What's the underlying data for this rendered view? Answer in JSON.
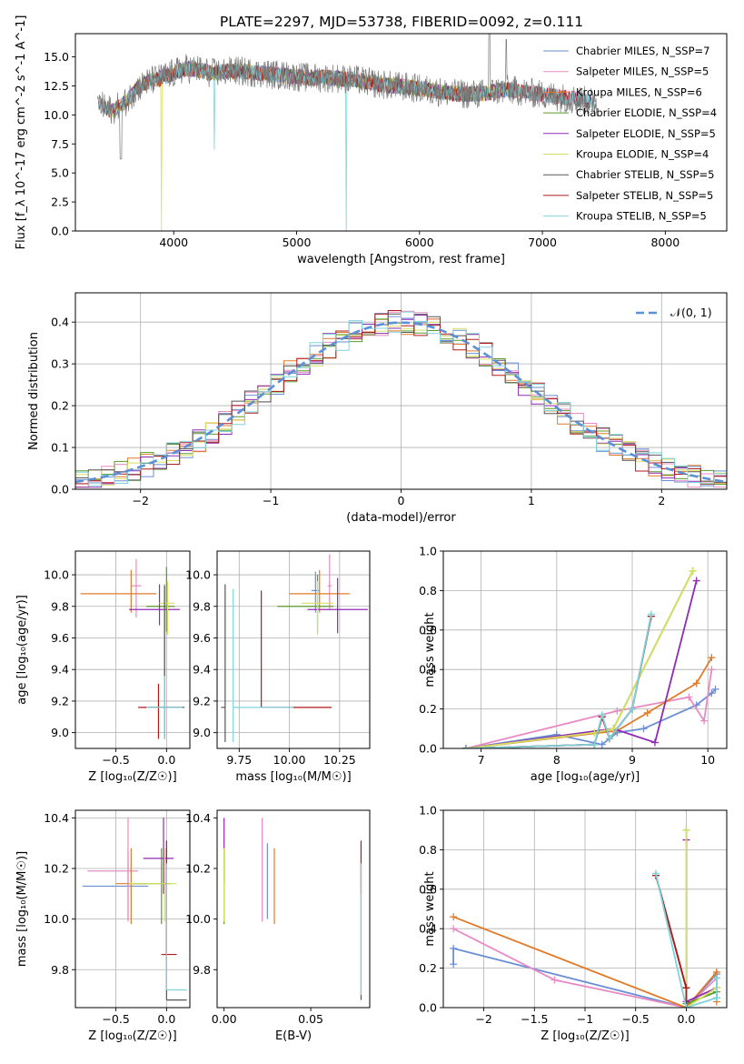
{
  "figure": {
    "title": "PLATE=2297, MJD=53738, FIBERID=0092, z=0.111",
    "fit_colors": [
      "#6a8fd6",
      "#e88bc4",
      "#e07b2a",
      "#5b9a2a",
      "#8f2ab5",
      "#d6e060",
      "#555555",
      "#b01a1a",
      "#7fd4dc"
    ]
  },
  "chart_data": [
    {
      "id": "spectrum",
      "type": "line",
      "title": "PLATE=2297, MJD=53738, FIBERID=0092, z=0.111",
      "xlabel": "wavelength [Angstrom, rest frame]",
      "ylabel": "Flux [f_λ 10^-17 erg cm^-2 s^-1 A^-1]",
      "xlim": [
        3200,
        8500
      ],
      "ylim": [
        0,
        17
      ],
      "xticks": [
        4000,
        5000,
        6000,
        7000,
        8000
      ],
      "yticks": [
        0.0,
        2.5,
        5.0,
        7.5,
        10.0,
        12.5,
        15.0
      ],
      "grid": false,
      "legend_position": "top-right",
      "series": [
        {
          "name": "Chabrier MILES, N_SSP=7",
          "color": "#6a8fd6"
        },
        {
          "name": "Salpeter MILES, N_SSP=5",
          "color": "#e88bc4"
        },
        {
          "name": "Kroupa MILES, N_SSP=6",
          "color": "#e07b2a"
        },
        {
          "name": "Chabrier ELODIE, N_SSP=4",
          "color": "#5b9a2a"
        },
        {
          "name": "Salpeter ELODIE, N_SSP=5",
          "color": "#8f2ab5"
        },
        {
          "name": "Kroupa ELODIE, N_SSP=4",
          "color": "#d6e060"
        },
        {
          "name": "Chabrier STELIB, N_SSP=5",
          "color": "#555555"
        },
        {
          "name": "Salpeter STELIB, N_SSP=5",
          "color": "#b01a1a"
        },
        {
          "name": "Kroupa STELIB, N_SSP=5",
          "color": "#7fd4dc"
        }
      ],
      "data_continuum": {
        "x": [
          3400,
          3500,
          3600,
          3700,
          3800,
          3900,
          4000,
          4100,
          4200,
          4300,
          4500,
          4700,
          4900,
          5100,
          5300,
          5500,
          5700,
          5900,
          6100,
          6300,
          6500,
          6700,
          6900,
          7100,
          7300,
          7400
        ],
        "y": [
          10.8,
          10.4,
          11.0,
          12.3,
          12.9,
          13.2,
          13.6,
          14.0,
          13.9,
          13.6,
          13.8,
          13.6,
          13.4,
          13.2,
          13.2,
          13.0,
          12.6,
          12.4,
          12.1,
          11.8,
          11.8,
          12.2,
          11.9,
          11.6,
          11.3,
          11.1
        ]
      }
    },
    {
      "id": "residuals",
      "type": "step",
      "xlabel": "(data-model)/error",
      "ylabel": "Normed distribution",
      "xlim": [
        -2.5,
        2.5
      ],
      "ylim": [
        0,
        0.47
      ],
      "xticks": [
        -2,
        -1,
        0,
        1,
        2
      ],
      "yticks": [
        0.0,
        0.1,
        0.2,
        0.3,
        0.4
      ],
      "grid": true,
      "legend_position": "top-right",
      "reference_curve": {
        "name": "𝒩(0, 1)",
        "color": "#5b8fd6",
        "mean": 0,
        "sigma": 1
      }
    },
    {
      "id": "age-vs-z",
      "type": "errorbar",
      "xlabel": "Z [log₁₀(Z/Z☉)]",
      "ylabel": "age  [log₁₀(age/yr)]",
      "xlim": [
        -0.9,
        0.23
      ],
      "ylim": [
        8.9,
        10.15
      ],
      "xticks": [
        -0.5,
        0.0
      ],
      "yticks": [
        9.0,
        9.2,
        9.4,
        9.6,
        9.8,
        10.0
      ],
      "grid": true,
      "points": [
        {
          "fit": 0,
          "x": -0.02,
          "y": 9.16,
          "xerr": [
            0.2,
            0.2
          ],
          "yerr": [
            0.2,
            0.78
          ]
        },
        {
          "fit": 1,
          "x": -0.3,
          "y": 9.93,
          "xerr": [
            0.05,
            0.05
          ],
          "yerr": [
            0.2,
            0.17
          ]
        },
        {
          "fit": 2,
          "x": -0.35,
          "y": 9.88,
          "xerr": [
            0.5,
            0.25
          ],
          "yerr": [
            0.12,
            0.15
          ]
        },
        {
          "fit": 3,
          "x": 0.0,
          "y": 9.8,
          "xerr": [
            0.2,
            0.08
          ],
          "yerr": [
            0.16,
            0.25
          ]
        },
        {
          "fit": 4,
          "x": -0.07,
          "y": 9.78,
          "xerr": [
            0.3,
            0.2
          ],
          "yerr": [
            0.1,
            0.16
          ]
        },
        {
          "fit": 5,
          "x": 0.01,
          "y": 9.82,
          "xerr": [
            0.08,
            0.07
          ],
          "yerr": [
            0.2,
            0.14
          ]
        },
        {
          "fit": 6,
          "x": -0.02,
          "y": 9.16,
          "xerr": [
            0.15,
            0.15
          ],
          "yerr": [
            0.2,
            0.77
          ]
        },
        {
          "fit": 7,
          "x": -0.08,
          "y": 9.16,
          "xerr": [
            0.2,
            0.25
          ],
          "yerr": [
            0.2,
            0.15
          ]
        },
        {
          "fit": 8,
          "x": -0.02,
          "y": 9.16,
          "xerr": [
            0.18,
            0.18
          ],
          "yerr": [
            0.2,
            0.2
          ]
        }
      ]
    },
    {
      "id": "age-vs-mass",
      "type": "errorbar",
      "xlabel": "mass [log₁₀(M/M☉)]",
      "ylabel": "",
      "xlim": [
        9.64,
        10.4
      ],
      "ylim": [
        8.9,
        10.15
      ],
      "xticks": [
        9.75,
        10.0,
        10.25
      ],
      "yticks": [
        9.0,
        9.2,
        9.4,
        9.6,
        9.8,
        10.0
      ],
      "grid": true,
      "points": [
        {
          "fit": 0,
          "x": 10.13,
          "y": 9.9,
          "xerr": [
            0.02,
            0.02
          ],
          "yerr": [
            0.14,
            0.12
          ]
        },
        {
          "fit": 1,
          "x": 10.2,
          "y": 9.93,
          "xerr": [
            0.01,
            0.01
          ],
          "yerr": [
            0.15,
            0.2
          ]
        },
        {
          "fit": 2,
          "x": 10.15,
          "y": 9.88,
          "xerr": [
            0.15,
            0.15
          ],
          "yerr": [
            0.12,
            0.15
          ]
        },
        {
          "fit": 3,
          "x": 10.14,
          "y": 9.8,
          "xerr": [
            0.2,
            0.08
          ],
          "yerr": [
            0.16,
            0.2
          ]
        },
        {
          "fit": 4,
          "x": 10.24,
          "y": 9.78,
          "xerr": [
            0.15,
            0.15
          ],
          "yerr": [
            0.15,
            0.2
          ]
        },
        {
          "fit": 5,
          "x": 10.14,
          "y": 9.82,
          "xerr": [
            0.08,
            0.08
          ],
          "yerr": [
            0.2,
            0.14
          ]
        },
        {
          "fit": 6,
          "x": 9.68,
          "y": 9.16,
          "xerr": [
            0.02,
            0.0
          ],
          "yerr": [
            0.22,
            0.78
          ]
        },
        {
          "fit": 7,
          "x": 9.86,
          "y": 9.16,
          "xerr": [
            0.0,
            0.35
          ],
          "yerr": [
            0.0,
            0.74
          ]
        },
        {
          "fit": 8,
          "x": 9.72,
          "y": 9.16,
          "xerr": [
            0.0,
            0.3
          ],
          "yerr": [
            0.22,
            0.75
          ]
        }
      ]
    },
    {
      "id": "massweight-vs-age",
      "type": "line",
      "xlabel": "age  [log₁₀(age/yr)]",
      "ylabel": "mass weight",
      "xlim": [
        6.5,
        10.25
      ],
      "ylim": [
        0,
        1
      ],
      "xticks": [
        7,
        8,
        9,
        10
      ],
      "yticks": [
        0.0,
        0.2,
        0.4,
        0.6,
        0.8,
        1.0
      ],
      "grid": true,
      "series": [
        {
          "fit": 0,
          "x": [
            6.8,
            8.0,
            8.6,
            8.8,
            9.15,
            9.85,
            10.05,
            10.1
          ],
          "y": [
            0.0,
            0.07,
            0.02,
            0.08,
            0.1,
            0.22,
            0.28,
            0.3
          ]
        },
        {
          "fit": 1,
          "x": [
            6.8,
            8.8,
            9.75,
            9.95,
            10.05
          ],
          "y": [
            0.0,
            0.19,
            0.26,
            0.14,
            0.4
          ]
        },
        {
          "fit": 2,
          "x": [
            6.8,
            8.8,
            9.2,
            9.85,
            10.05
          ],
          "y": [
            0.0,
            0.09,
            0.18,
            0.33,
            0.46
          ]
        },
        {
          "fit": 3,
          "x": [
            6.8,
            8.5,
            8.75,
            9.8
          ],
          "y": [
            0.0,
            0.08,
            0.1,
            0.9
          ]
        },
        {
          "fit": 4,
          "x": [
            6.8,
            8.75,
            9.3,
            9.85
          ],
          "y": [
            0.0,
            0.1,
            0.03,
            0.85
          ]
        },
        {
          "fit": 5,
          "x": [
            6.8,
            8.5,
            8.75,
            9.8
          ],
          "y": [
            0.0,
            0.08,
            0.1,
            0.9
          ]
        },
        {
          "fit": 6,
          "x": [
            6.8,
            8.5,
            8.6,
            8.7,
            9.0,
            9.25
          ],
          "y": [
            0.0,
            0.02,
            0.16,
            0.05,
            0.2,
            0.67
          ]
        },
        {
          "fit": 7,
          "x": [
            6.8,
            8.5,
            8.6,
            8.7,
            9.0,
            9.25
          ],
          "y": [
            0.0,
            0.02,
            0.16,
            0.05,
            0.2,
            0.67
          ]
        },
        {
          "fit": 8,
          "x": [
            6.8,
            8.5,
            8.6,
            8.7,
            9.0,
            9.25
          ],
          "y": [
            0.0,
            0.02,
            0.17,
            0.05,
            0.2,
            0.68
          ]
        }
      ]
    },
    {
      "id": "mass-vs-z",
      "type": "errorbar",
      "xlabel": "Z [log₁₀(Z/Z☉)]",
      "ylabel": "mass [log₁₀(M/M☉)]",
      "xlim": [
        -0.9,
        0.23
      ],
      "ylim": [
        9.65,
        10.43
      ],
      "xticks": [
        -0.5,
        0.0
      ],
      "yticks": [
        9.8,
        10.0,
        10.2,
        10.4
      ],
      "grid": true,
      "points": [
        {
          "fit": 0,
          "x": -0.38,
          "y": 10.13,
          "xerr": [
            0.45,
            0.2
          ],
          "yerr": [
            0.13,
            0.14
          ]
        },
        {
          "fit": 1,
          "x": -0.38,
          "y": 10.19,
          "xerr": [
            0.4,
            0.1
          ],
          "yerr": [
            0.2,
            0.21
          ]
        },
        {
          "fit": 2,
          "x": -0.35,
          "y": 10.14,
          "xerr": [
            0.15,
            0.15
          ],
          "yerr": [
            0.16,
            0.14
          ]
        },
        {
          "fit": 3,
          "x": -0.05,
          "y": 10.14,
          "xerr": [
            0.3,
            0.1
          ],
          "yerr": [
            0.16,
            0.14
          ]
        },
        {
          "fit": 4,
          "x": -0.03,
          "y": 10.24,
          "xerr": [
            0.2,
            0.1
          ],
          "yerr": [
            0.14,
            0.16
          ]
        },
        {
          "fit": 5,
          "x": -0.02,
          "y": 10.14,
          "xerr": [
            0.35,
            0.12
          ],
          "yerr": [
            0.15,
            0.14
          ]
        },
        {
          "fit": 6,
          "x": 0.0,
          "y": 9.68,
          "xerr": [
            0.0,
            0.2
          ],
          "yerr": [
            0.0,
            0.6
          ]
        },
        {
          "fit": 7,
          "x": 0.0,
          "y": 9.86,
          "xerr": [
            0.05,
            0.1
          ],
          "yerr": [
            0.0,
            0.45
          ]
        },
        {
          "fit": 8,
          "x": 0.0,
          "y": 9.72,
          "xerr": [
            0.0,
            0.2
          ],
          "yerr": [
            0.0,
            0.5
          ]
        }
      ]
    },
    {
      "id": "mass-vs-ebv",
      "type": "errorbar",
      "xlabel": "E(B-V)",
      "ylabel": "",
      "xlim": [
        -0.004,
        0.084
      ],
      "ylim": [
        9.65,
        10.43
      ],
      "xticks": [
        0.0,
        0.05
      ],
      "yticks": [
        9.8,
        10.0,
        10.2,
        10.4
      ],
      "grid": false,
      "points": [
        {
          "fit": 0,
          "x": 0.025,
          "y": 10.13,
          "xerr": [
            0,
            0
          ],
          "yerr": [
            0.13,
            0.17
          ]
        },
        {
          "fit": 1,
          "x": 0.022,
          "y": 10.19,
          "xerr": [
            0,
            0
          ],
          "yerr": [
            0.2,
            0.21
          ]
        },
        {
          "fit": 2,
          "x": 0.029,
          "y": 10.14,
          "xerr": [
            0,
            0
          ],
          "yerr": [
            0.16,
            0.14
          ]
        },
        {
          "fit": 3,
          "x": 0.0,
          "y": 10.14,
          "xerr": [
            0,
            0
          ],
          "yerr": [
            0.16,
            0.14
          ]
        },
        {
          "fit": 4,
          "x": 0.0,
          "y": 10.24,
          "xerr": [
            0,
            0
          ],
          "yerr": [
            0.1,
            0.16
          ]
        },
        {
          "fit": 5,
          "x": 0.0,
          "y": 10.14,
          "xerr": [
            0,
            0
          ],
          "yerr": [
            0.15,
            0.14
          ]
        },
        {
          "fit": 6,
          "x": 0.079,
          "y": 9.95,
          "xerr": [
            0,
            0
          ],
          "yerr": [
            0.27,
            0.27
          ]
        },
        {
          "fit": 7,
          "x": 0.079,
          "y": 10.2,
          "xerr": [
            0,
            0
          ],
          "yerr": [
            0.1,
            0.11
          ]
        },
        {
          "fit": 8,
          "x": 0.079,
          "y": 9.95,
          "xerr": [
            0,
            0
          ],
          "yerr": [
            0.25,
            0.27
          ]
        }
      ]
    },
    {
      "id": "massweight-vs-z",
      "type": "line",
      "xlabel": "Z [log₁₀(Z/Z☉)]",
      "ylabel": "mass weight",
      "xlim": [
        -2.4,
        0.4
      ],
      "ylim": [
        0,
        1
      ],
      "xticks": [
        -2.0,
        -1.5,
        -1.0,
        -0.5,
        0.0
      ],
      "yticks": [
        0.0,
        0.2,
        0.4,
        0.6,
        0.8,
        1.0
      ],
      "grid": true,
      "series": [
        {
          "fit": 0,
          "x": [
            -2.3,
            -2.3,
            0.0,
            0.3,
            0.3
          ],
          "y": [
            0.22,
            0.3,
            0.0,
            0.17,
            0.1
          ]
        },
        {
          "fit": 1,
          "x": [
            -2.3,
            -1.3,
            0.0,
            0.3
          ],
          "y": [
            0.4,
            0.14,
            0.0,
            0.15
          ]
        },
        {
          "fit": 2,
          "x": [
            -2.3,
            0.0,
            0.3,
            0.3
          ],
          "y": [
            0.46,
            0.0,
            0.18,
            0.03
          ]
        },
        {
          "fit": 3,
          "x": [
            0.0,
            0.0,
            0.3,
            0.3
          ],
          "y": [
            0.9,
            0.02,
            0.08,
            0.05
          ]
        },
        {
          "fit": 4,
          "x": [
            0.0,
            0.0,
            0.3
          ],
          "y": [
            0.85,
            0.03,
            0.1
          ]
        },
        {
          "fit": 5,
          "x": [
            0.0,
            0.0,
            0.3
          ],
          "y": [
            0.9,
            0.0,
            0.1
          ]
        },
        {
          "fit": 6,
          "x": [
            -0.3,
            0.0,
            0.0
          ],
          "y": [
            0.67,
            0.1,
            0.0
          ]
        },
        {
          "fit": 7,
          "x": [
            -0.3,
            0.0,
            0.0
          ],
          "y": [
            0.67,
            0.1,
            0.0
          ]
        },
        {
          "fit": 8,
          "x": [
            -0.3,
            0.0,
            0.3,
            0.3
          ],
          "y": [
            0.68,
            0.0,
            0.05,
            0.15
          ]
        }
      ]
    }
  ]
}
